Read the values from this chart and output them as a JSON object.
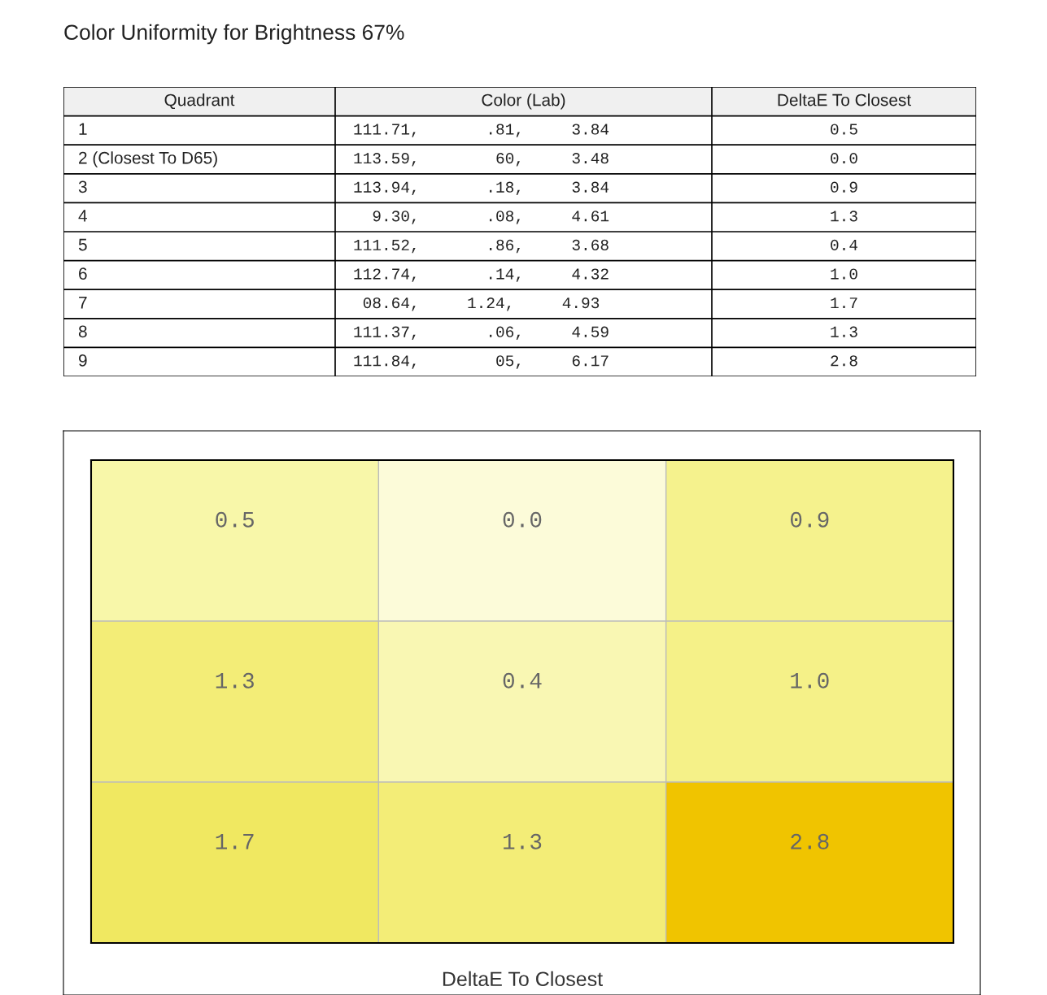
{
  "chart_data": [
    {
      "type": "other",
      "title": "Color Uniformity for Brightness 67%",
      "annotations": [
        "Quadrant",
        "Color (Lab)",
        "DeltaE To Closest",
        "1",
        "111.71,       .81,     3.84",
        "0.5",
        "2 (Closest To D65)",
        "113.59,        60,     3.48",
        "0.0",
        "3",
        "113.94,       .18,     3.84",
        "0.9",
        "4",
        "  9.30,       .08,     4.61",
        "1.3",
        "5",
        "111.52,       .86,     3.68",
        "0.4",
        "6",
        "112.74,       .14,     4.32",
        "1.0",
        "7",
        " 08.64,     1.24,     4.93",
        "1.7",
        "8",
        "111.37,       .06,     4.59",
        "1.3",
        "9",
        "111.84,        05,     6.17",
        "2.8"
      ]
    },
    {
      "type": "heatmap",
      "xlabel": "DeltaE To Closest",
      "categories": [
        null,
        null,
        null
      ],
      "y_categories": [
        null,
        null,
        null
      ],
      "cells": [
        [
          0.5,
          0.0,
          0.9
        ],
        [
          1.3,
          0.4,
          1.0
        ],
        [
          1.7,
          1.3,
          2.8
        ]
      ],
      "cell_labels": [
        [
          "0.5",
          "0.0",
          "0.9"
        ],
        [
          "1.3",
          "0.4",
          "1.0"
        ],
        [
          "1.7",
          "1.3",
          "2.8"
        ]
      ],
      "grid": true,
      "tick_labels": false
    }
  ]
}
